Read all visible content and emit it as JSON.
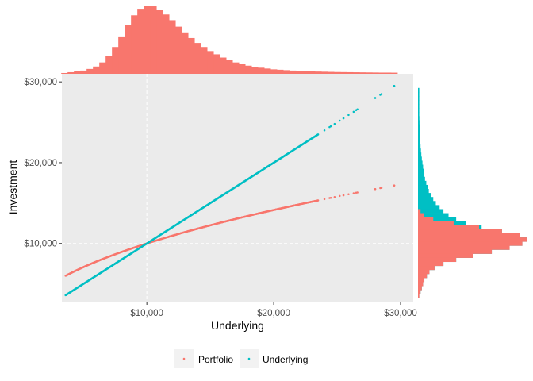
{
  "chart_data": {
    "type": "scatter",
    "title": "",
    "xlabel": "Underlying",
    "ylabel": "Investment",
    "xlim": [
      3300,
      31000
    ],
    "ylim": [
      2800,
      31000
    ],
    "x_ticks": [
      10000,
      20000,
      30000
    ],
    "x_tick_labels": [
      "$10,000",
      "$20,000",
      "$30,000"
    ],
    "y_ticks": [
      10000,
      20000,
      30000
    ],
    "y_tick_labels": [
      "$10,000",
      "$20,000",
      "$30,000"
    ],
    "reference_lines": {
      "vline_x": 10000,
      "hline_y": 10000,
      "style": "dashed",
      "color": "#ffffff"
    },
    "grid": false,
    "legend_position": "bottom",
    "legend": {
      "items": [
        {
          "label": "Portfolio",
          "color": "#F8766D"
        },
        {
          "label": "Underlying",
          "color": "#00BFC4"
        }
      ]
    },
    "series": [
      {
        "name": "Portfolio",
        "color": "#F8766D",
        "relation": "y = 10000 * sqrt(x / 10000)",
        "points": [
          [
            3600,
            6000
          ],
          [
            4500,
            6700
          ],
          [
            5500,
            7400
          ],
          [
            6500,
            8050
          ],
          [
            7500,
            8660
          ],
          [
            8500,
            9220
          ],
          [
            9500,
            9750
          ],
          [
            10500,
            10250
          ],
          [
            11500,
            10720
          ],
          [
            12500,
            11180
          ],
          [
            13500,
            11620
          ],
          [
            14500,
            12040
          ],
          [
            15500,
            12450
          ],
          [
            16500,
            12850
          ],
          [
            17500,
            13230
          ],
          [
            18500,
            13600
          ],
          [
            19500,
            13960
          ],
          [
            20500,
            14320
          ],
          [
            21500,
            14660
          ],
          [
            22500,
            15000
          ],
          [
            23500,
            15330
          ],
          [
            24500,
            15650
          ],
          [
            25500,
            15970
          ],
          [
            26500,
            16280
          ],
          [
            28000,
            16730
          ],
          [
            28500,
            16880
          ],
          [
            29500,
            17180
          ]
        ]
      },
      {
        "name": "Underlying",
        "color": "#00BFC4",
        "relation": "y = x",
        "points": [
          [
            3600,
            3600
          ],
          [
            4500,
            4500
          ],
          [
            5500,
            5500
          ],
          [
            6500,
            6500
          ],
          [
            7500,
            7500
          ],
          [
            8500,
            8500
          ],
          [
            9500,
            9500
          ],
          [
            10500,
            10500
          ],
          [
            11500,
            11500
          ],
          [
            12500,
            12500
          ],
          [
            13500,
            13500
          ],
          [
            14500,
            14500
          ],
          [
            15500,
            15500
          ],
          [
            16500,
            16500
          ],
          [
            17500,
            17500
          ],
          [
            18500,
            18500
          ],
          [
            19500,
            19500
          ],
          [
            20500,
            20500
          ],
          [
            21500,
            21500
          ],
          [
            22500,
            22500
          ],
          [
            23500,
            23500
          ],
          [
            24500,
            24500
          ],
          [
            25500,
            25500
          ],
          [
            26500,
            26500
          ],
          [
            28000,
            28000
          ],
          [
            28500,
            28500
          ],
          [
            29500,
            29500
          ]
        ]
      }
    ],
    "top_histogram": {
      "variable": "Underlying",
      "color": "#F8766D",
      "bins": [
        [
          3500,
          1
        ],
        [
          4000,
          2
        ],
        [
          4500,
          3
        ],
        [
          5000,
          4
        ],
        [
          5500,
          6
        ],
        [
          6000,
          9
        ],
        [
          6500,
          14
        ],
        [
          7000,
          22
        ],
        [
          7500,
          33
        ],
        [
          8000,
          46
        ],
        [
          8500,
          60
        ],
        [
          9000,
          72
        ],
        [
          9500,
          80
        ],
        [
          10000,
          84
        ],
        [
          10500,
          83
        ],
        [
          11000,
          79
        ],
        [
          11500,
          73
        ],
        [
          12000,
          66
        ],
        [
          12500,
          58
        ],
        [
          13000,
          51
        ],
        [
          13500,
          44
        ],
        [
          14000,
          38
        ],
        [
          14500,
          33
        ],
        [
          15000,
          28
        ],
        [
          15500,
          24
        ],
        [
          16000,
          20
        ],
        [
          16500,
          17
        ],
        [
          17000,
          14
        ],
        [
          17500,
          12
        ],
        [
          18000,
          10
        ],
        [
          18500,
          8.5
        ],
        [
          19000,
          7.5
        ],
        [
          19500,
          6.5
        ],
        [
          20000,
          5.5
        ],
        [
          20500,
          5
        ],
        [
          21000,
          4.5
        ],
        [
          21500,
          4
        ],
        [
          22000,
          3.5
        ],
        [
          22500,
          3.2
        ],
        [
          23000,
          3
        ],
        [
          23500,
          2.8
        ],
        [
          24000,
          2.6
        ],
        [
          24500,
          2.4
        ],
        [
          25000,
          2.2
        ],
        [
          25500,
          2.1
        ],
        [
          26000,
          2
        ],
        [
          26500,
          1.9
        ],
        [
          27000,
          1.8
        ],
        [
          27500,
          1.7
        ],
        [
          28000,
          1.6
        ],
        [
          28500,
          1.5
        ],
        [
          29000,
          1.5
        ],
        [
          29500,
          1.4
        ]
      ]
    },
    "right_histogram": {
      "series": [
        {
          "name": "Portfolio",
          "color": "#F8766D",
          "bins": [
            [
              3500,
              1
            ],
            [
              4000,
              2
            ],
            [
              4500,
              3
            ],
            [
              5000,
              4
            ],
            [
              5500,
              5
            ],
            [
              6000,
              7
            ],
            [
              6500,
              9
            ],
            [
              7000,
              13
            ],
            [
              7500,
              20
            ],
            [
              8000,
              30
            ],
            [
              8500,
              43
            ],
            [
              9000,
              58
            ],
            [
              9500,
              72
            ],
            [
              10000,
              82
            ],
            [
              10500,
              86
            ],
            [
              11000,
              80
            ],
            [
              11500,
              66
            ],
            [
              12000,
              48
            ],
            [
              12500,
              28
            ],
            [
              13000,
              12
            ],
            [
              13500,
              5
            ],
            [
              14000,
              2
            ]
          ]
        },
        {
          "name": "Underlying",
          "color": "#00BFC4",
          "bins": [
            [
              3500,
              1
            ],
            [
              4000,
              2
            ],
            [
              4500,
              3
            ],
            [
              5000,
              4
            ],
            [
              5500,
              5
            ],
            [
              6000,
              7
            ],
            [
              6500,
              9
            ],
            [
              7000,
              13
            ],
            [
              7500,
              20
            ],
            [
              8000,
              30
            ],
            [
              8500,
              43
            ],
            [
              9000,
              58
            ],
            [
              9500,
              72
            ],
            [
              10000,
              82
            ],
            [
              10500,
              86
            ],
            [
              11000,
              80
            ],
            [
              11500,
              66
            ],
            [
              12000,
              50
            ],
            [
              12500,
              38
            ],
            [
              13000,
              30
            ],
            [
              13500,
              24
            ],
            [
              14000,
              20
            ],
            [
              14500,
              17
            ],
            [
              15000,
              14
            ],
            [
              15500,
              12
            ],
            [
              16000,
              10
            ],
            [
              16500,
              8.5
            ],
            [
              17000,
              7.5
            ],
            [
              17500,
              6.5
            ],
            [
              18000,
              5.5
            ],
            [
              18500,
              5
            ],
            [
              19000,
              4.5
            ],
            [
              19500,
              4
            ],
            [
              20000,
              3.5
            ],
            [
              20500,
              3
            ],
            [
              21000,
              2.6
            ],
            [
              21500,
              2.3
            ],
            [
              22000,
              2
            ],
            [
              22500,
              1.8
            ],
            [
              23000,
              1.6
            ],
            [
              23500,
              1.5
            ],
            [
              24000,
              1.4
            ],
            [
              24500,
              1.3
            ],
            [
              25000,
              1.2
            ],
            [
              25500,
              1.1
            ],
            [
              26000,
              1
            ],
            [
              26500,
              1
            ],
            [
              27000,
              1
            ],
            [
              27500,
              1
            ],
            [
              28000,
              1
            ],
            [
              28500,
              1
            ],
            [
              29000,
              1
            ]
          ]
        }
      ]
    }
  }
}
